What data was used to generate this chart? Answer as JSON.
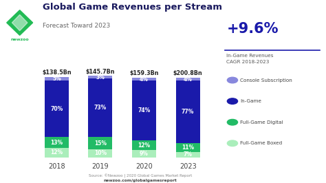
{
  "years": [
    "2018",
    "2019",
    "2020",
    "2023"
  ],
  "totals": [
    "$138.5Bn",
    "$145.7Bn",
    "$159.3Bn",
    "$200.8Bn"
  ],
  "segments": {
    "Full-Game Boxed": [
      12,
      10,
      9,
      7
    ],
    "Full-Game Digital": [
      13,
      15,
      12,
      11
    ],
    "In-Game": [
      70,
      73,
      74,
      77
    ],
    "Console Subscription": [
      5,
      3,
      4,
      4
    ]
  },
  "colors": {
    "Full-Game Boxed": "#aaeebb",
    "Full-Game Digital": "#22bb66",
    "In-Game": "#1a1aaa",
    "Console Subscription": "#8888dd"
  },
  "title": "Global Game Revenues per Stream",
  "subtitle": "Forecast Toward 2023",
  "cagr_text": "+9.6%",
  "cagr_label": "In-Game Revenues\nCAGR 2018-2023",
  "source_line1": "Source: ©Newzoo | 2020 Global Games Market Report",
  "source_line2": "newzoo.com/globalgamesreport",
  "bg_color": "#ffffff",
  "bar_width": 0.55,
  "seg_names": [
    "Full-Game Boxed",
    "Full-Game Digital",
    "In-Game",
    "Console Subscription"
  ],
  "legend_order": [
    "Console Subscription",
    "In-Game",
    "Full-Game Digital",
    "Full-Game Boxed"
  ]
}
